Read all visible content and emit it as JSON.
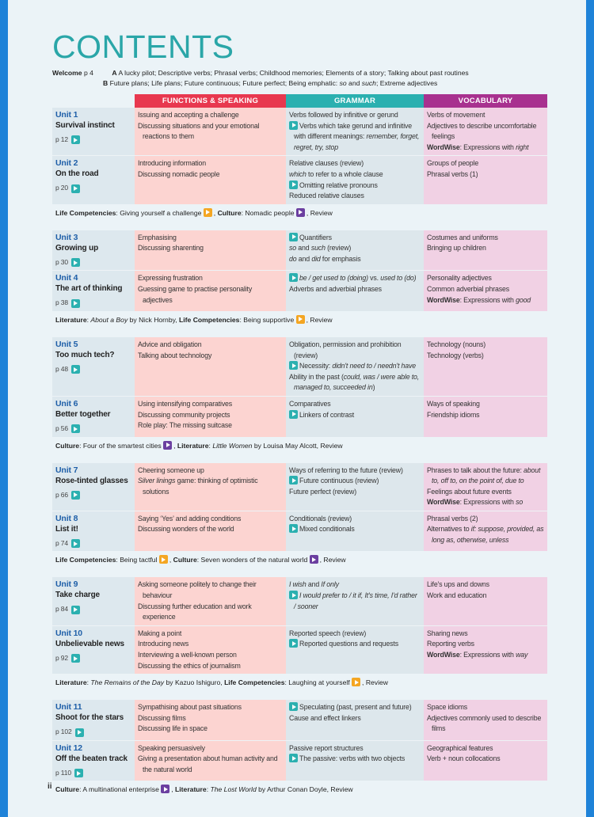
{
  "title": "CONTENTS",
  "welcome": {
    "label": "Welcome",
    "page": "p 4",
    "a_label": "A",
    "a_text": "A lucky pilot; Descriptive verbs; Phrasal verbs; Childhood memories; Elements of a story; Talking about past routines",
    "b_label": "B",
    "b_segments": [
      "Future plans; Life plans; Future continuous; Future perfect; Being emphatic: ",
      {
        "i": "so"
      },
      " and ",
      {
        "i": "such"
      },
      "; Extreme adjectives"
    ]
  },
  "headers": {
    "functions": "FUNCTIONS & SPEAKING",
    "grammar": "GRAMMAR",
    "vocabulary": "VOCABULARY"
  },
  "colors": {
    "functions": "#e8384f",
    "grammar": "#2bb0b0",
    "vocabulary": "#a8318f",
    "title": "#2aa6a8",
    "unit": "#1f5fa8"
  },
  "groups": [
    {
      "units": [
        {
          "num": "Unit 1",
          "title": "Survival instinct",
          "page": "p 12",
          "functions": [
            [
              "Issuing and accepting a challenge"
            ],
            [
              "Discussing situations and your emotional reactions to them"
            ]
          ],
          "grammar": [
            [
              "Verbs followed by infinitive or gerund"
            ],
            [
              {
                "icon": "teal"
              },
              "Verbs which take gerund and infinitive with different meanings: ",
              {
                "i": "remember, forget, regret, try, stop"
              }
            ]
          ],
          "vocabulary": [
            [
              "Verbs of movement"
            ],
            [
              "Adjectives to describe uncomfortable feelings"
            ],
            [
              {
                "b": "WordWise"
              },
              ": Expressions with ",
              {
                "i": "right"
              }
            ]
          ]
        },
        {
          "num": "Unit 2",
          "title": "On the road",
          "page": "p 20",
          "functions": [
            [
              "Introducing information"
            ],
            [
              "Discussing nomadic people"
            ]
          ],
          "grammar": [
            [
              "Relative clauses (review)"
            ],
            [
              {
                "i": "which"
              },
              " to refer to a whole clause"
            ],
            [
              {
                "icon": "teal"
              },
              "Omitting relative pronouns"
            ],
            [
              "Reduced relative clauses"
            ]
          ],
          "vocabulary": [
            [
              "Groups of people"
            ],
            [
              "Phrasal verbs (1)"
            ]
          ]
        }
      ],
      "footer": [
        {
          "b": "Life Competencies"
        },
        ": Giving yourself a challenge ",
        {
          "icon": "orange"
        },
        ", ",
        {
          "b": "Culture"
        },
        ": Nomadic people ",
        {
          "icon": "purple"
        },
        ", Review"
      ]
    },
    {
      "units": [
        {
          "num": "Unit 3",
          "title": "Growing up",
          "page": "p 30",
          "functions": [
            [
              "Emphasising"
            ],
            [
              "Discussing sharenting"
            ]
          ],
          "grammar": [
            [
              {
                "icon": "teal"
              },
              "Quantifiers"
            ],
            [
              {
                "i": "so"
              },
              " and ",
              {
                "i": "such"
              },
              " (review)"
            ],
            [
              {
                "i": "do"
              },
              " and ",
              {
                "i": "did"
              },
              " for emphasis"
            ]
          ],
          "vocabulary": [
            [
              "Costumes and uniforms"
            ],
            [
              "Bringing up children"
            ]
          ]
        },
        {
          "num": "Unit 4",
          "title": "The art of thinking",
          "page": "p 38",
          "functions": [
            [
              "Expressing frustration"
            ],
            [
              "Guessing game to practise personality adjectives"
            ]
          ],
          "grammar": [
            [
              {
                "icon": "teal"
              },
              {
                "i": "be / get used to (doing)"
              },
              " vs. ",
              {
                "i": "used to (do)"
              }
            ],
            [
              "Adverbs and adverbial phrases"
            ]
          ],
          "vocabulary": [
            [
              "Personality adjectives"
            ],
            [
              "Common adverbial phrases"
            ],
            [
              {
                "b": "WordWise"
              },
              ": Expressions with ",
              {
                "i": "good"
              }
            ]
          ]
        }
      ],
      "footer": [
        {
          "b": "Literature"
        },
        ": ",
        {
          "i": "About a Boy"
        },
        " by Nick Hornby, ",
        {
          "b": "Life Competencies"
        },
        ": Being supportive ",
        {
          "icon": "orange"
        },
        ", Review"
      ]
    },
    {
      "units": [
        {
          "num": "Unit 5",
          "title": "Too much tech?",
          "page": "p 48",
          "functions": [
            [
              "Advice and obligation"
            ],
            [
              "Talking about technology"
            ]
          ],
          "grammar": [
            [
              "Obligation, permission and prohibition (review)"
            ],
            [
              {
                "icon": "teal"
              },
              "Necessity: ",
              {
                "i": "didn't need to / needn't have"
              }
            ],
            [
              "Ability in the past (",
              {
                "i": "could, was / were able to, managed to, succeeded in"
              },
              ")"
            ]
          ],
          "vocabulary": [
            [
              "Technology (nouns)"
            ],
            [
              "Technology (verbs)"
            ]
          ]
        },
        {
          "num": "Unit 6",
          "title": "Better together",
          "page": "p 56",
          "functions": [
            [
              "Using intensifying comparatives"
            ],
            [
              "Discussing community projects"
            ],
            [
              "Role play: The missing suitcase"
            ]
          ],
          "grammar": [
            [
              "Comparatives"
            ],
            [
              {
                "icon": "teal"
              },
              "Linkers of contrast"
            ]
          ],
          "vocabulary": [
            [
              "Ways of speaking"
            ],
            [
              "Friendship idioms"
            ]
          ]
        }
      ],
      "footer": [
        {
          "b": "Culture"
        },
        ": Four of the smartest cities ",
        {
          "icon": "purple"
        },
        ", ",
        {
          "b": "Literature"
        },
        ": ",
        {
          "i": "Little Women"
        },
        " by Louisa May Alcott, Review"
      ]
    },
    {
      "units": [
        {
          "num": "Unit 7",
          "title": "Rose-tinted glasses",
          "page": "p 66",
          "functions": [
            [
              "Cheering someone up"
            ],
            [
              {
                "i": "Silver linings"
              },
              " game: thinking of optimistic solutions"
            ]
          ],
          "grammar": [
            [
              "Ways of referring to the future (review)"
            ],
            [
              {
                "icon": "teal"
              },
              "Future continuous (review)"
            ],
            [
              "Future perfect (review)"
            ]
          ],
          "vocabulary": [
            [
              "Phrases to talk about the future: ",
              {
                "i": "about to, off to, on the point of, due to"
              }
            ],
            [
              "Feelings about future events"
            ],
            [
              {
                "b": "WordWise"
              },
              ": Expressions with ",
              {
                "i": "so"
              }
            ]
          ]
        },
        {
          "num": "Unit 8",
          "title": "List it!",
          "page": "p 74",
          "functions": [
            [
              "Saying ‘Yes’ and adding conditions"
            ],
            [
              "Discussing wonders of the world"
            ]
          ],
          "grammar": [
            [
              "Conditionals (review)"
            ],
            [
              {
                "icon": "teal"
              },
              "Mixed conditionals"
            ]
          ],
          "vocabulary": [
            [
              "Phrasal verbs (2)"
            ],
            [
              "Alternatives to ",
              {
                "i": "if: suppose, provided, as long as, otherwise, unless"
              }
            ]
          ]
        }
      ],
      "footer": [
        {
          "b": "Life Competencies"
        },
        ": Being tactful ",
        {
          "icon": "orange"
        },
        ", ",
        {
          "b": "Culture"
        },
        ": Seven wonders of the natural world ",
        {
          "icon": "purple"
        },
        ", Review"
      ]
    },
    {
      "units": [
        {
          "num": "Unit 9",
          "title": "Take charge",
          "page": "p 84",
          "functions": [
            [
              "Asking someone politely to change their behaviour"
            ],
            [
              "Discussing further education and work experience"
            ]
          ],
          "grammar": [
            [
              {
                "i": "I wish"
              },
              " and ",
              {
                "i": "If only"
              }
            ],
            [
              {
                "icon": "teal"
              },
              {
                "i": "I would prefer to / it if, It's time, I'd rather / sooner"
              }
            ]
          ],
          "vocabulary": [
            [
              "Life's ups and downs"
            ],
            [
              "Work and education"
            ]
          ]
        },
        {
          "num": "Unit 10",
          "title": "Unbelievable news",
          "page": "p 92",
          "functions": [
            [
              "Making a point"
            ],
            [
              "Introducing news"
            ],
            [
              "Interviewing a well-known person"
            ],
            [
              "Discussing the ethics of journalism"
            ]
          ],
          "grammar": [
            [
              "Reported speech (review)"
            ],
            [
              {
                "icon": "teal"
              },
              "Reported questions and requests"
            ]
          ],
          "vocabulary": [
            [
              "Sharing news"
            ],
            [
              "Reporting verbs"
            ],
            [
              {
                "b": "WordWise"
              },
              ": Expressions with ",
              {
                "i": "way"
              }
            ]
          ]
        }
      ],
      "footer": [
        {
          "b": "Literature"
        },
        ": ",
        {
          "i": "The Remains of the Day"
        },
        " by Kazuo Ishiguro, ",
        {
          "b": "Life Competencies"
        },
        ": Laughing at yourself ",
        {
          "icon": "orange"
        },
        ", Review"
      ]
    },
    {
      "units": [
        {
          "num": "Unit 11",
          "title": "Shoot for the stars",
          "page": "p 102",
          "functions": [
            [
              "Sympathising about past situations"
            ],
            [
              "Discussing films"
            ],
            [
              "Discussing life in space"
            ]
          ],
          "grammar": [
            [
              {
                "icon": "teal"
              },
              "Speculating (past, present and future)"
            ],
            [
              "Cause and effect linkers"
            ]
          ],
          "vocabulary": [
            [
              "Space idioms"
            ],
            [
              "Adjectives commonly used to describe films"
            ]
          ]
        },
        {
          "num": "Unit 12",
          "title": "Off the beaten track",
          "page": "p 110",
          "functions": [
            [
              "Speaking persuasively"
            ],
            [
              "Giving a presentation about human activity and the natural world"
            ]
          ],
          "grammar": [
            [
              "Passive report structures"
            ],
            [
              {
                "icon": "teal"
              },
              "The passive: verbs with two objects"
            ]
          ],
          "vocabulary": [
            [
              "Geographical features"
            ],
            [
              "Verb + noun collocations"
            ]
          ]
        }
      ],
      "footer": [
        {
          "b": "Culture"
        },
        ": A multinational enterprise ",
        {
          "icon": "purple"
        },
        ", ",
        {
          "b": "Literature"
        },
        ": ",
        {
          "i": "The Lost World"
        },
        " by Arthur Conan Doyle, Review"
      ]
    }
  ],
  "page_number": "ii"
}
